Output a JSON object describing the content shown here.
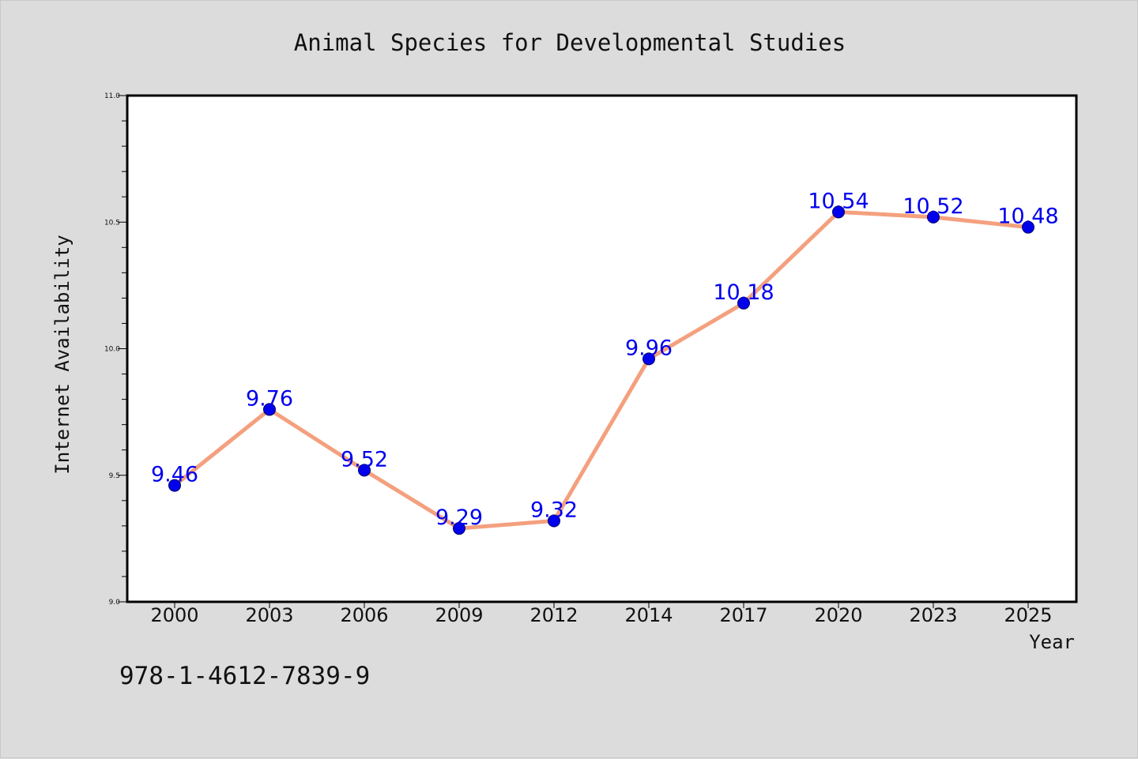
{
  "chart_data": {
    "type": "line",
    "title": "Animal Species for Developmental Studies",
    "xlabel": "Year",
    "ylabel": "Internet Availability",
    "categories": [
      "2000",
      "2003",
      "2006",
      "2009",
      "2012",
      "2014",
      "2017",
      "2020",
      "2023",
      "2025"
    ],
    "series": [
      {
        "values": [
          9.46,
          9.76,
          9.52,
          9.29,
          9.32,
          9.96,
          10.18,
          10.54,
          10.52,
          10.48
        ]
      }
    ],
    "data_labels": [
      "9.46",
      "9.76",
      "9.52",
      "9.29",
      "9.32",
      "9.96",
      "10.18",
      "10.54",
      "10.52",
      "10.48"
    ],
    "ylim": [
      9.0,
      11.0
    ],
    "y_ticks": [
      "9.0",
      "9.5",
      "10.0",
      "10.5",
      "11.0"
    ],
    "grid": false,
    "legend": "none",
    "colors": {
      "line": "#f4a07e",
      "marker": "#0000ee",
      "label": "#0000ee"
    }
  },
  "footer": {
    "isbn": "978-1-4612-7839-9"
  }
}
